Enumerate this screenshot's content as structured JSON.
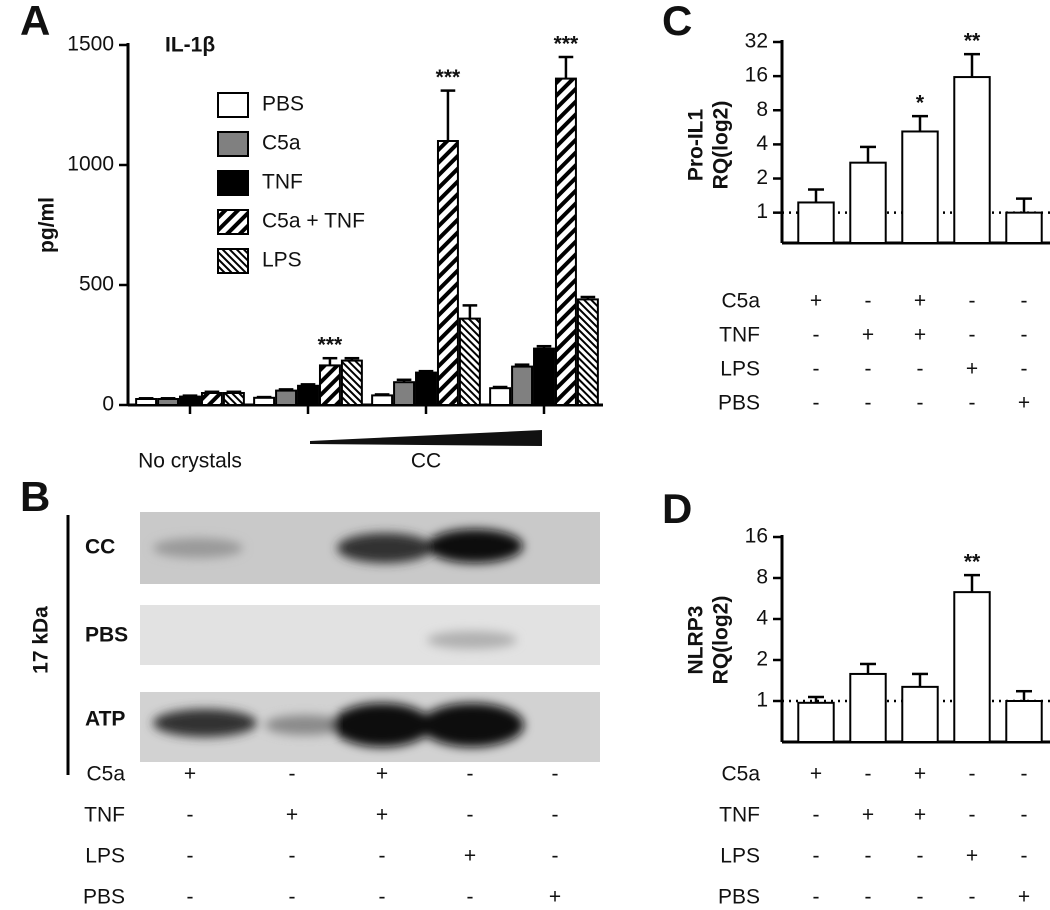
{
  "chart_data": [
    {
      "type": "bar",
      "panel": "A",
      "title": "IL-1β",
      "ylabel": "pg/ml",
      "categories": [
        "No crystals",
        null,
        "CC",
        null
      ],
      "series": [
        {
          "name": "PBS",
          "color": "#ffffff",
          "values": [
            25,
            30,
            40,
            70
          ],
          "errors": [
            3,
            3,
            4,
            5
          ]
        },
        {
          "name": "C5a",
          "color": "#808080",
          "values": [
            25,
            60,
            95,
            160
          ],
          "errors": [
            3,
            5,
            10,
            8
          ]
        },
        {
          "name": "TNF",
          "color": "#000000",
          "values": [
            35,
            80,
            135,
            235
          ],
          "errors": [
            4,
            6,
            6,
            10
          ]
        },
        {
          "name": "C5a + TNF",
          "color": "#ffffff",
          "hatch": "wide",
          "values": [
            50,
            165,
            1100,
            1360
          ],
          "errors": [
            5,
            30,
            210,
            90
          ],
          "annotations": [
            null,
            "***",
            "***",
            "***"
          ]
        },
        {
          "name": "LPS",
          "color": "#ffffff",
          "hatch": "dense",
          "values": [
            50,
            185,
            360,
            440
          ],
          "errors": [
            5,
            10,
            55,
            10
          ]
        }
      ],
      "ylim": [
        0,
        1500
      ],
      "yticks": [
        0,
        500,
        1000,
        1500
      ],
      "legend": "upper center"
    },
    {
      "type": "bar",
      "panel": "C",
      "ylabel": [
        "Pro-IL1",
        "RQ(log2)"
      ],
      "log_base": 2,
      "values": [
        1.23,
        2.76,
        5.2,
        15.7,
        1.0
      ],
      "errors": [
        0.37,
        1.04,
        1.9,
        9.3,
        0.33
      ],
      "annotations": [
        null,
        null,
        "*",
        "**",
        null
      ],
      "color": "#ffffff",
      "ylim": [
        0.54,
        32
      ],
      "yticks": [
        1,
        2,
        4,
        8,
        16,
        32
      ],
      "reference_line": 1,
      "conditions": [
        {
          "name": "C5a",
          "signs": [
            "+",
            "-",
            "+",
            "-",
            "-"
          ]
        },
        {
          "name": "TNF",
          "signs": [
            "-",
            "+",
            "+",
            "-",
            "-"
          ]
        },
        {
          "name": "LPS",
          "signs": [
            "-",
            "-",
            "-",
            "+",
            "-"
          ]
        },
        {
          "name": "PBS",
          "signs": [
            "-",
            "-",
            "-",
            "-",
            "+"
          ]
        }
      ]
    },
    {
      "type": "bar",
      "panel": "D",
      "ylabel": [
        "NLRP3",
        "RQ(log2)"
      ],
      "log_base": 2,
      "values": [
        0.97,
        1.58,
        1.27,
        6.3,
        1.0
      ],
      "errors": [
        0.1,
        0.29,
        0.31,
        2.1,
        0.18
      ],
      "annotations": [
        null,
        null,
        null,
        "**",
        null
      ],
      "color": "#ffffff",
      "ylim": [
        0.5,
        16
      ],
      "yticks": [
        1,
        2,
        4,
        8,
        16
      ],
      "reference_line": 1,
      "conditions": [
        {
          "name": "C5a",
          "signs": [
            "+",
            "-",
            "+",
            "-",
            "-"
          ]
        },
        {
          "name": "TNF",
          "signs": [
            "-",
            "+",
            "+",
            "-",
            "-"
          ]
        },
        {
          "name": "LPS",
          "signs": [
            "-",
            "-",
            "-",
            "+",
            "-"
          ]
        },
        {
          "name": "PBS",
          "signs": [
            "-",
            "-",
            "-",
            "-",
            "+"
          ]
        }
      ]
    }
  ],
  "blot": {
    "panel": "B",
    "label": "17 kDa",
    "rows": [
      "CC",
      "PBS",
      "ATP"
    ],
    "conditions": [
      {
        "name": "C5a",
        "signs": [
          "+",
          "-",
          "+",
          "-",
          "-"
        ]
      },
      {
        "name": "TNF",
        "signs": [
          "-",
          "+",
          "+",
          "-",
          "-"
        ]
      },
      {
        "name": "LPS",
        "signs": [
          "-",
          "-",
          "-",
          "+",
          "-"
        ]
      },
      {
        "name": "PBS",
        "signs": [
          "-",
          "-",
          "-",
          "-",
          "+"
        ]
      }
    ]
  }
}
